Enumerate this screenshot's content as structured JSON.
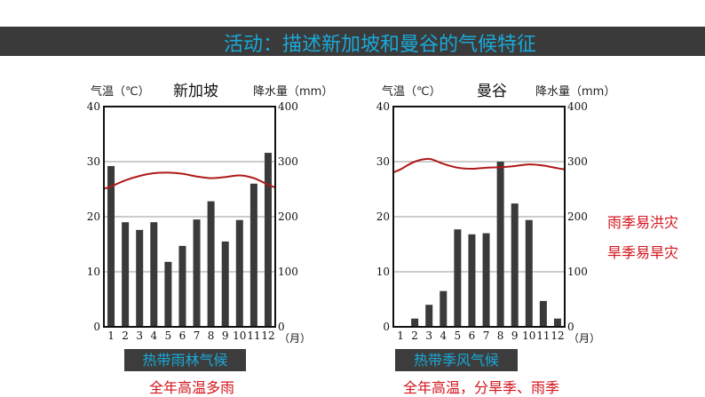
{
  "title": "活动：描述新加坡和曼谷的气候特征",
  "colors": {
    "title_text": "#1aa9d8",
    "title_bar": "#3a3a3a",
    "bar": "#3a3a3a",
    "temp_line": "#b01818",
    "annotation": "#d3141c"
  },
  "chart_data": [
    {
      "type": "bar+line",
      "title": "新加坡",
      "ylabel_left": "气温（℃）",
      "ylabel_right": "降水量（mm）",
      "xlabel": "（月）",
      "categories": [
        "1",
        "2",
        "3",
        "4",
        "5",
        "6",
        "7",
        "8",
        "9",
        "10",
        "11",
        "12"
      ],
      "left_ticks": [
        "0",
        "10",
        "20",
        "30",
        "40"
      ],
      "right_ticks": [
        "0",
        "100",
        "200",
        "300",
        "400"
      ],
      "ylim_temp": [
        0,
        40
      ],
      "ylim_precip": [
        0,
        400
      ],
      "grid": true,
      "precipitation_mm": [
        292,
        190,
        176,
        190,
        118,
        147,
        195,
        228,
        155,
        194,
        260,
        316
      ],
      "temperature_c": [
        25.5,
        26.6,
        27.4,
        27.9,
        28.0,
        27.8,
        27.3,
        27.0,
        27.2,
        27.5,
        27.0,
        25.8
      ]
    },
    {
      "type": "bar+line",
      "title": "曼谷",
      "ylabel_left": "气温（℃）",
      "ylabel_right": "降水量（mm）",
      "xlabel": "（月）",
      "categories": [
        "1",
        "2",
        "3",
        "4",
        "5",
        "6",
        "7",
        "8",
        "9",
        "10",
        "11",
        "12"
      ],
      "left_ticks": [
        "0",
        "10",
        "20",
        "30",
        "40"
      ],
      "right_ticks": [
        "0",
        "100",
        "200",
        "300",
        "400"
      ],
      "ylim_temp": [
        0,
        40
      ],
      "ylim_precip": [
        0,
        400
      ],
      "grid": true,
      "precipitation_mm": [
        0,
        15,
        40,
        65,
        177,
        168,
        170,
        300,
        224,
        194,
        47,
        15
      ],
      "temperature_c": [
        28.6,
        30.0,
        30.5,
        29.6,
        28.9,
        28.7,
        28.9,
        29.0,
        29.2,
        29.5,
        29.3,
        28.8
      ]
    }
  ],
  "climate_types": [
    "热带雨林气候",
    "热带季风气候"
  ],
  "features": [
    "全年高温多雨",
    "全年高温，分旱季、雨季"
  ],
  "notes": [
    "雨季易洪灾",
    "旱季易旱灾"
  ]
}
